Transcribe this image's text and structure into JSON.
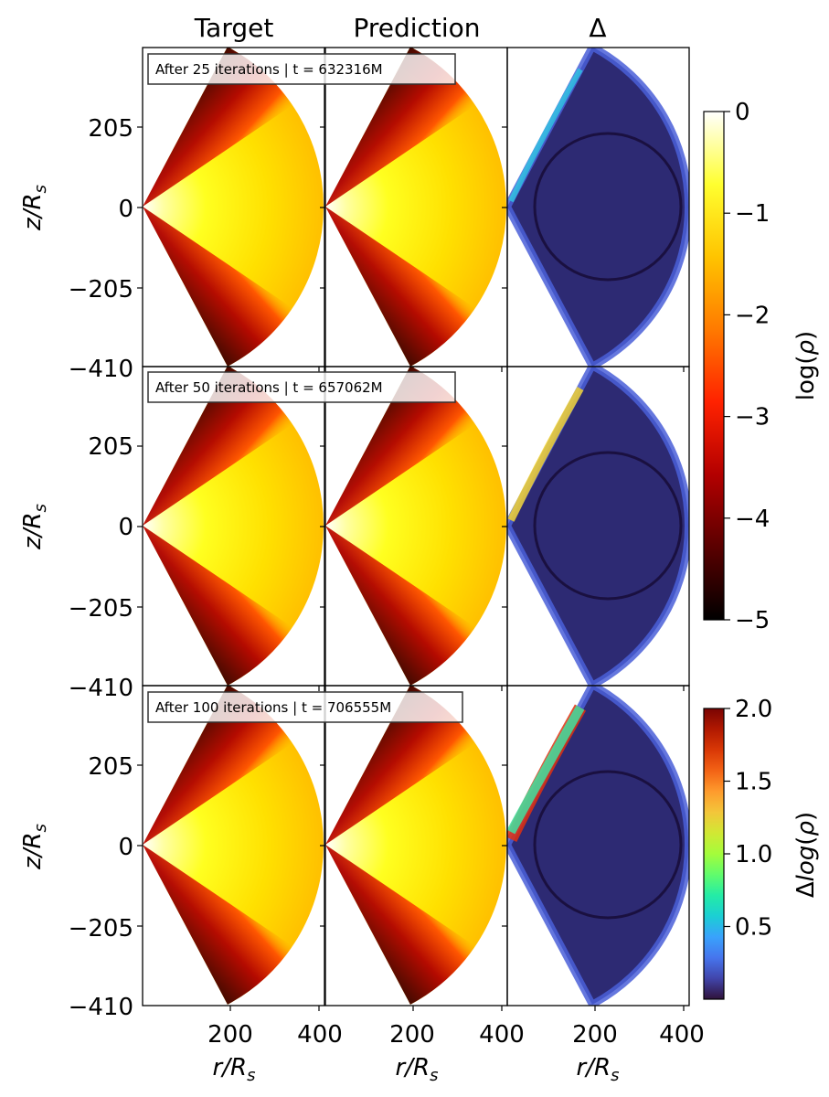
{
  "column_titles": [
    "Target",
    "Prediction",
    "Δ"
  ],
  "row_annotations": [
    "After 25 iterations | t = 632316M",
    "After 50 iterations | t = 657062M",
    "After 100 iterations | t = 706555M"
  ],
  "colorbars": {
    "density": {
      "label": "log(ρ)",
      "ticks": [
        "0",
        "−1",
        "−2",
        "−3",
        "−4",
        "−5"
      ],
      "range": [
        -5,
        0
      ],
      "colormap": "hot",
      "colors": [
        "#000000",
        "#5a0000",
        "#b30000",
        "#ff2200",
        "#ff7a00",
        "#ffc400",
        "#ffff30",
        "#ffffff"
      ]
    },
    "difference": {
      "label": "Δlog(ρ)",
      "ticks": [
        "2.0",
        "1.5",
        "1.0",
        "0.5"
      ],
      "range": [
        0.0,
        2.0
      ],
      "colormap": "turbo",
      "colors": [
        "#30123b",
        "#4145ab",
        "#4675ed",
        "#39a2fc",
        "#1bcfd4",
        "#24eca6",
        "#61fc6c",
        "#a4fc3b",
        "#d1e834",
        "#f3c63a",
        "#fe9b2d",
        "#f36315",
        "#d93806",
        "#b11901",
        "#7a0403"
      ]
    }
  },
  "chart_data": {
    "type": "heatmap",
    "subtype": "wedge density maps in meridional plane, grid of 3 rows × 3 columns",
    "x_axis": {
      "label": "r/R_s",
      "ticks": [
        "200",
        "400"
      ]
    },
    "y_axis": {
      "label": "z/R_s",
      "ticks": [
        "205",
        "0",
        "−205",
        "−410"
      ]
    },
    "rows": [
      {
        "iterations": 25,
        "t": "632316M"
      },
      {
        "iterations": 50,
        "t": "657062M"
      },
      {
        "iterations": 100,
        "t": "706555M"
      }
    ],
    "columns": [
      "Target",
      "Prediction",
      "Δ"
    ]
  }
}
